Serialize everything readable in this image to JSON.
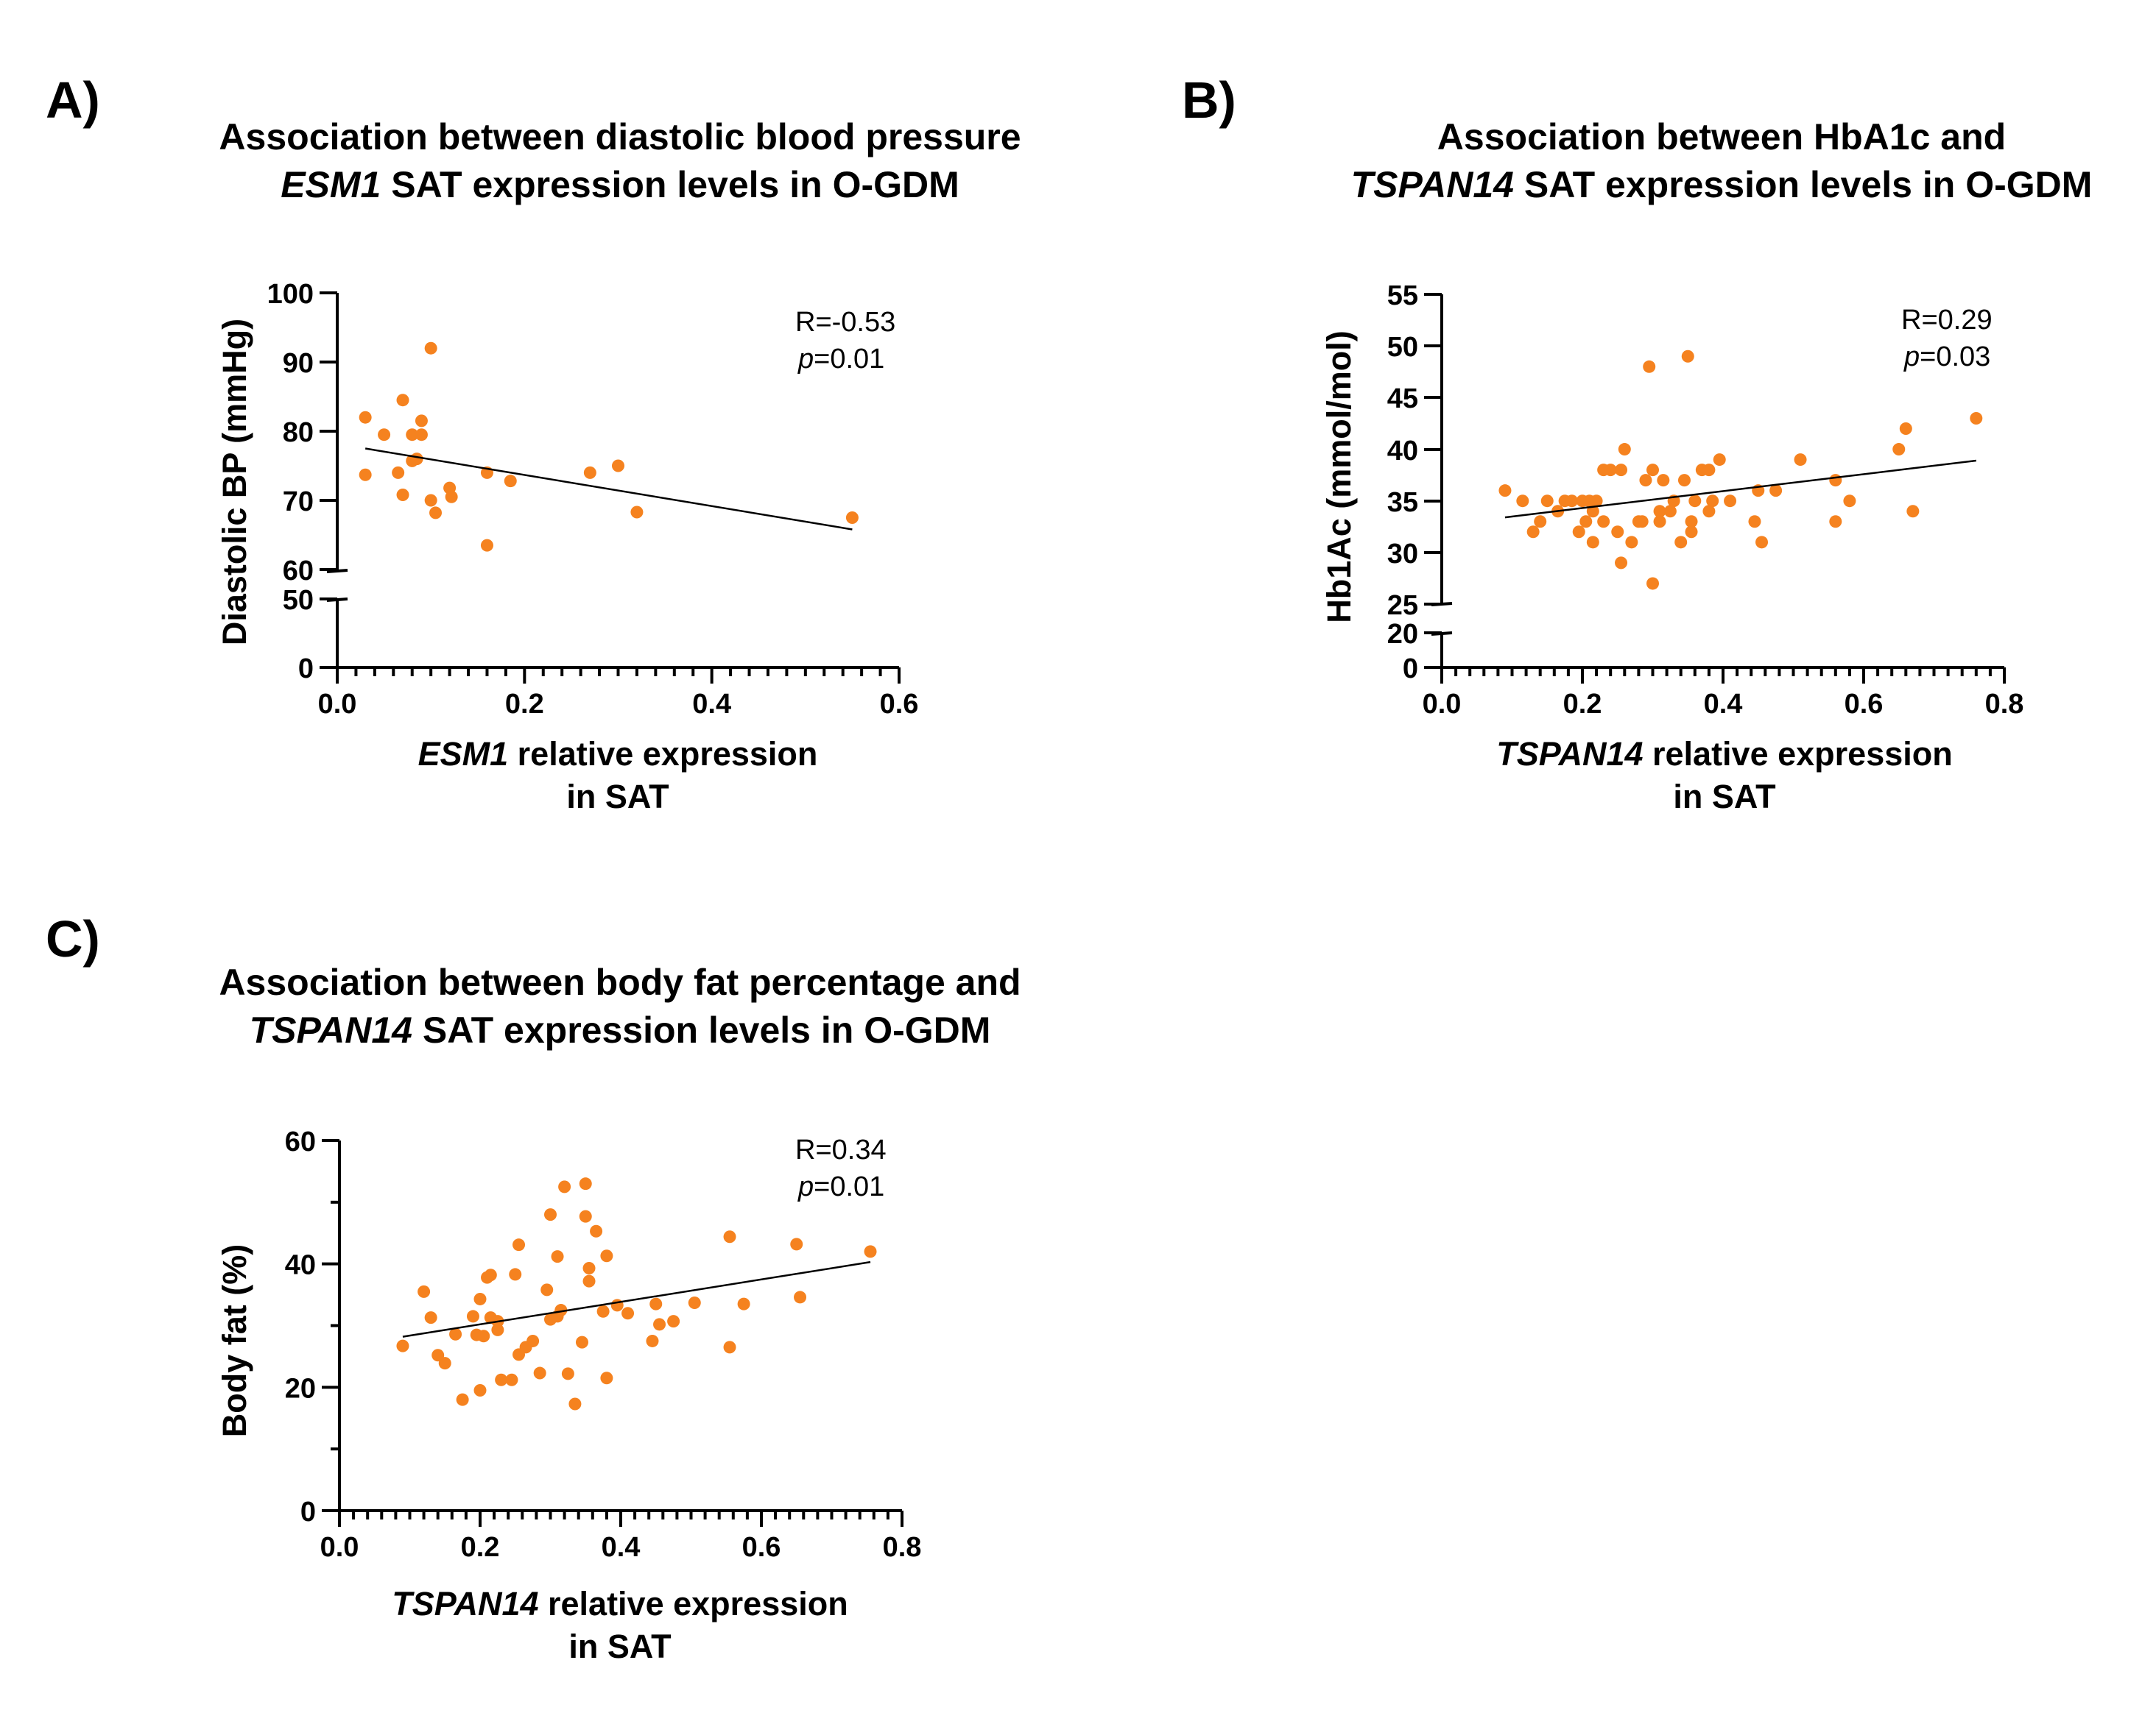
{
  "chart_data": [
    {
      "panel": "A)",
      "type": "scatter",
      "title_line1": "Association between diastolic blood pressure",
      "title_line2_italic": "ESM1",
      "title_line2_rest": " SAT expression levels in O-GDM",
      "xlabel_italic": "ESM1",
      "xlabel_rest": " relative expression",
      "xlabel_line2": "in SAT",
      "ylabel": "Diastolic BP (mmHg)",
      "r_text": "R=-0.53",
      "p_italic": "p",
      "p_value": "=0.01",
      "xlim": [
        0,
        0.6
      ],
      "xticks": [
        0.0,
        0.2,
        0.4,
        0.6
      ],
      "xtick_labels": [
        "0.0",
        "0.2",
        "0.4",
        "0.6"
      ],
      "y_break": {
        "lower": [
          0,
          50
        ],
        "upper": [
          60,
          100
        ],
        "lower_ticks": [
          0,
          50
        ],
        "upper_ticks": [
          60,
          70,
          80,
          90,
          100
        ]
      },
      "points": [
        {
          "x": 0.03,
          "y": 82
        },
        {
          "x": 0.03,
          "y": 73.7
        },
        {
          "x": 0.05,
          "y": 79.5
        },
        {
          "x": 0.07,
          "y": 84.5
        },
        {
          "x": 0.065,
          "y": 74
        },
        {
          "x": 0.07,
          "y": 70.8
        },
        {
          "x": 0.08,
          "y": 79.5
        },
        {
          "x": 0.08,
          "y": 75.7
        },
        {
          "x": 0.09,
          "y": 81.5
        },
        {
          "x": 0.09,
          "y": 79.5
        },
        {
          "x": 0.085,
          "y": 76
        },
        {
          "x": 0.1,
          "y": 92
        },
        {
          "x": 0.1,
          "y": 70
        },
        {
          "x": 0.105,
          "y": 68.2
        },
        {
          "x": 0.12,
          "y": 71.8
        },
        {
          "x": 0.122,
          "y": 70.5
        },
        {
          "x": 0.16,
          "y": 74
        },
        {
          "x": 0.16,
          "y": 63.5
        },
        {
          "x": 0.185,
          "y": 72.8
        },
        {
          "x": 0.27,
          "y": 74
        },
        {
          "x": 0.3,
          "y": 75
        },
        {
          "x": 0.32,
          "y": 68.3
        },
        {
          "x": 0.55,
          "y": 67.5
        }
      ],
      "trendline": {
        "x": [
          0.03,
          0.55
        ],
        "y": [
          77.5,
          65.8
        ]
      }
    },
    {
      "panel": "B)",
      "type": "scatter",
      "title_line1": "Association between HbA1c and",
      "title_line2_italic": "TSPAN14",
      "title_line2_rest": " SAT expression levels in O-GDM",
      "xlabel_italic": "TSPAN14",
      "xlabel_rest": " relative expression",
      "xlabel_line2": "in SAT",
      "ylabel": "Hb1Ac (mmol/mol)",
      "r_text": "R=0.29",
      "p_italic": "p",
      "p_value": "=0.03",
      "xlim": [
        0,
        0.8
      ],
      "xticks": [
        0.0,
        0.2,
        0.4,
        0.6,
        0.8
      ],
      "xtick_labels": [
        "0.0",
        "0.2",
        "0.4",
        "0.6",
        "0.8"
      ],
      "y_break": {
        "lower": [
          0,
          20
        ],
        "upper": [
          25,
          55
        ],
        "lower_ticks": [
          0,
          20
        ],
        "upper_ticks": [
          25,
          30,
          35,
          40,
          45,
          50,
          55
        ]
      },
      "points": [
        {
          "x": 0.09,
          "y": 36
        },
        {
          "x": 0.115,
          "y": 35
        },
        {
          "x": 0.13,
          "y": 32
        },
        {
          "x": 0.14,
          "y": 33
        },
        {
          "x": 0.15,
          "y": 35
        },
        {
          "x": 0.165,
          "y": 34
        },
        {
          "x": 0.175,
          "y": 35
        },
        {
          "x": 0.185,
          "y": 35
        },
        {
          "x": 0.195,
          "y": 32
        },
        {
          "x": 0.2,
          "y": 35
        },
        {
          "x": 0.205,
          "y": 33
        },
        {
          "x": 0.21,
          "y": 35
        },
        {
          "x": 0.215,
          "y": 34
        },
        {
          "x": 0.215,
          "y": 31
        },
        {
          "x": 0.22,
          "y": 35
        },
        {
          "x": 0.23,
          "y": 33
        },
        {
          "x": 0.23,
          "y": 38
        },
        {
          "x": 0.24,
          "y": 38
        },
        {
          "x": 0.25,
          "y": 32
        },
        {
          "x": 0.255,
          "y": 38
        },
        {
          "x": 0.255,
          "y": 29
        },
        {
          "x": 0.26,
          "y": 40
        },
        {
          "x": 0.27,
          "y": 31
        },
        {
          "x": 0.28,
          "y": 33
        },
        {
          "x": 0.285,
          "y": 33
        },
        {
          "x": 0.29,
          "y": 37
        },
        {
          "x": 0.295,
          "y": 48
        },
        {
          "x": 0.3,
          "y": 38
        },
        {
          "x": 0.3,
          "y": 27
        },
        {
          "x": 0.31,
          "y": 33
        },
        {
          "x": 0.31,
          "y": 34
        },
        {
          "x": 0.315,
          "y": 37
        },
        {
          "x": 0.325,
          "y": 34
        },
        {
          "x": 0.33,
          "y": 35
        },
        {
          "x": 0.34,
          "y": 31
        },
        {
          "x": 0.345,
          "y": 37
        },
        {
          "x": 0.35,
          "y": 49
        },
        {
          "x": 0.355,
          "y": 33
        },
        {
          "x": 0.355,
          "y": 32
        },
        {
          "x": 0.36,
          "y": 35
        },
        {
          "x": 0.37,
          "y": 38
        },
        {
          "x": 0.38,
          "y": 38
        },
        {
          "x": 0.38,
          "y": 34
        },
        {
          "x": 0.385,
          "y": 35
        },
        {
          "x": 0.395,
          "y": 39
        },
        {
          "x": 0.41,
          "y": 35
        },
        {
          "x": 0.445,
          "y": 33
        },
        {
          "x": 0.45,
          "y": 36
        },
        {
          "x": 0.455,
          "y": 31
        },
        {
          "x": 0.475,
          "y": 36
        },
        {
          "x": 0.51,
          "y": 39
        },
        {
          "x": 0.56,
          "y": 37
        },
        {
          "x": 0.56,
          "y": 33
        },
        {
          "x": 0.58,
          "y": 35
        },
        {
          "x": 0.65,
          "y": 40
        },
        {
          "x": 0.66,
          "y": 42
        },
        {
          "x": 0.67,
          "y": 34
        },
        {
          "x": 0.76,
          "y": 43
        }
      ],
      "trendline": {
        "x": [
          0.09,
          0.76
        ],
        "y": [
          33.4,
          38.9
        ]
      }
    },
    {
      "panel": "C)",
      "type": "scatter",
      "title_line1": "Association between body fat percentage and",
      "title_line2_italic": "TSPAN14",
      "title_line2_rest": " SAT expression levels in O-GDM",
      "xlabel_italic": "TSPAN14",
      "xlabel_rest": " relative expression",
      "xlabel_line2": "in SAT",
      "ylabel": "Body fat (%)",
      "r_text": "R=0.34",
      "p_italic": "p",
      "p_value": "=0.01",
      "xlim": [
        0,
        0.8
      ],
      "ylim": [
        0,
        60
      ],
      "xticks": [
        0.0,
        0.2,
        0.4,
        0.6,
        0.8
      ],
      "xtick_labels": [
        "0.0",
        "0.2",
        "0.4",
        "0.6",
        "0.8"
      ],
      "yticks": [
        0,
        20,
        40,
        60
      ],
      "ytick_labels": [
        "0",
        "20",
        "40",
        "60"
      ],
      "points": [
        {
          "x": 0.09,
          "y": 26.7
        },
        {
          "x": 0.12,
          "y": 35.5
        },
        {
          "x": 0.13,
          "y": 31.3
        },
        {
          "x": 0.14,
          "y": 25.2
        },
        {
          "x": 0.15,
          "y": 23.9
        },
        {
          "x": 0.165,
          "y": 28.6
        },
        {
          "x": 0.175,
          "y": 18
        },
        {
          "x": 0.19,
          "y": 31.5
        },
        {
          "x": 0.195,
          "y": 28.5
        },
        {
          "x": 0.2,
          "y": 34.3
        },
        {
          "x": 0.205,
          "y": 28.3
        },
        {
          "x": 0.2,
          "y": 19.5
        },
        {
          "x": 0.21,
          "y": 37.8
        },
        {
          "x": 0.215,
          "y": 38.2
        },
        {
          "x": 0.215,
          "y": 31.3
        },
        {
          "x": 0.225,
          "y": 29.3
        },
        {
          "x": 0.225,
          "y": 30.7
        },
        {
          "x": 0.23,
          "y": 21.2
        },
        {
          "x": 0.245,
          "y": 21.2
        },
        {
          "x": 0.25,
          "y": 38.3
        },
        {
          "x": 0.255,
          "y": 43.1
        },
        {
          "x": 0.255,
          "y": 25.3
        },
        {
          "x": 0.265,
          "y": 26.5
        },
        {
          "x": 0.275,
          "y": 27.5
        },
        {
          "x": 0.285,
          "y": 22.3
        },
        {
          "x": 0.295,
          "y": 35.8
        },
        {
          "x": 0.3,
          "y": 48
        },
        {
          "x": 0.3,
          "y": 31
        },
        {
          "x": 0.31,
          "y": 41.2
        },
        {
          "x": 0.31,
          "y": 31.5
        },
        {
          "x": 0.315,
          "y": 32.5
        },
        {
          "x": 0.32,
          "y": 52.5
        },
        {
          "x": 0.325,
          "y": 22.2
        },
        {
          "x": 0.335,
          "y": 17.3
        },
        {
          "x": 0.345,
          "y": 27.3
        },
        {
          "x": 0.35,
          "y": 53
        },
        {
          "x": 0.35,
          "y": 47.7
        },
        {
          "x": 0.355,
          "y": 39.3
        },
        {
          "x": 0.355,
          "y": 37.2
        },
        {
          "x": 0.365,
          "y": 45.3
        },
        {
          "x": 0.375,
          "y": 32.3
        },
        {
          "x": 0.38,
          "y": 41.3
        },
        {
          "x": 0.38,
          "y": 21.5
        },
        {
          "x": 0.395,
          "y": 33.3
        },
        {
          "x": 0.41,
          "y": 32
        },
        {
          "x": 0.445,
          "y": 27.5
        },
        {
          "x": 0.45,
          "y": 33.5
        },
        {
          "x": 0.455,
          "y": 30.2
        },
        {
          "x": 0.475,
          "y": 30.7
        },
        {
          "x": 0.505,
          "y": 33.7
        },
        {
          "x": 0.555,
          "y": 44.4
        },
        {
          "x": 0.555,
          "y": 26.5
        },
        {
          "x": 0.575,
          "y": 33.5
        },
        {
          "x": 0.65,
          "y": 43.2
        },
        {
          "x": 0.655,
          "y": 34.6
        },
        {
          "x": 0.755,
          "y": 42
        }
      ],
      "trendline": {
        "x": [
          0.09,
          0.755
        ],
        "y": [
          28.2,
          40.3
        ]
      }
    }
  ],
  "colors": {
    "point": "#F5821F",
    "axis": "#000000",
    "trendline": "#000000"
  }
}
